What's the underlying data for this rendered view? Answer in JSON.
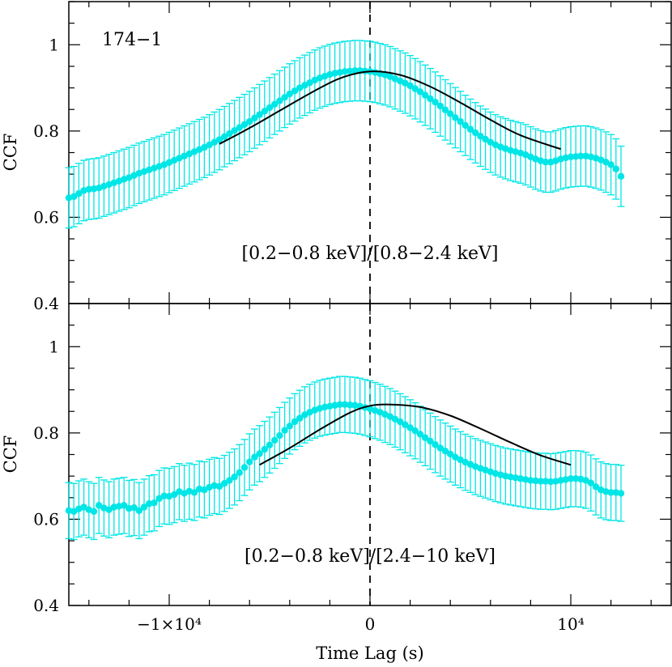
{
  "chart_data": [
    {
      "type": "scatter",
      "panel": "top",
      "label": "174−1",
      "band_ratio_label": "[0.2−0.8 keV]/[0.8−2.4 keV]",
      "ylabel": "CCF",
      "xlim": [
        -15000,
        15000
      ],
      "ylim": [
        0.4,
        1.1
      ],
      "y_tick_labels": [
        "0.4",
        "0.6",
        "0.8",
        "1"
      ],
      "y_ticks": [
        0.4,
        0.6,
        0.8,
        1.0
      ],
      "zero_line": true,
      "point_color": "#00e6e6",
      "error_bar_half_width": 0.07,
      "points": {
        "x_start": -15000,
        "x_step": 250,
        "y": [
          0.645,
          0.648,
          0.655,
          0.662,
          0.665,
          0.666,
          0.668,
          0.672,
          0.676,
          0.68,
          0.684,
          0.688,
          0.692,
          0.697,
          0.702,
          0.706,
          0.71,
          0.714,
          0.718,
          0.722,
          0.727,
          0.732,
          0.737,
          0.742,
          0.747,
          0.752,
          0.757,
          0.762,
          0.768,
          0.774,
          0.78,
          0.787,
          0.794,
          0.801,
          0.808,
          0.815,
          0.822,
          0.83,
          0.838,
          0.846,
          0.854,
          0.862,
          0.87,
          0.878,
          0.886,
          0.893,
          0.9,
          0.906,
          0.912,
          0.918,
          0.923,
          0.927,
          0.931,
          0.934,
          0.936,
          0.938,
          0.939,
          0.94,
          0.94,
          0.939,
          0.938,
          0.936,
          0.933,
          0.93,
          0.926,
          0.921,
          0.916,
          0.911,
          0.905,
          0.898,
          0.891,
          0.883,
          0.875,
          0.867,
          0.858,
          0.849,
          0.84,
          0.831,
          0.822,
          0.813,
          0.804,
          0.796,
          0.788,
          0.781,
          0.774,
          0.768,
          0.763,
          0.759,
          0.755,
          0.752,
          0.749,
          0.745,
          0.74,
          0.735,
          0.731,
          0.728,
          0.728,
          0.731,
          0.735,
          0.738,
          0.74,
          0.741,
          0.742,
          0.742,
          0.74,
          0.737,
          0.733,
          0.728,
          0.722,
          0.712,
          0.695
        ]
      },
      "fit_curve": {
        "x": [
          -7500,
          -6000,
          -4500,
          -3000,
          -1500,
          0,
          1500,
          3000,
          4500,
          6000,
          7500,
          9500
        ],
        "y": [
          0.77,
          0.807,
          0.847,
          0.887,
          0.922,
          0.938,
          0.93,
          0.903,
          0.866,
          0.826,
          0.79,
          0.758
        ]
      }
    },
    {
      "type": "scatter",
      "panel": "bottom",
      "band_ratio_label": "[0.2−0.8 keV]/[2.4−10 keV]",
      "xlabel": "Time Lag (s)",
      "ylabel": "CCF",
      "xlim": [
        -15000,
        15000
      ],
      "ylim": [
        0.4,
        1.1
      ],
      "x_ticks": [
        -10000,
        0,
        10000
      ],
      "x_tick_labels": [
        "−1×10⁴",
        "0",
        "10⁴"
      ],
      "y_tick_labels": [
        "0.4",
        "0.6",
        "0.8",
        "1"
      ],
      "y_ticks": [
        0.4,
        0.6,
        0.8,
        1.0
      ],
      "zero_line": true,
      "point_color": "#00e6e6",
      "error_bar_half_width": 0.065,
      "points": {
        "x_start": -15000,
        "x_step": 250,
        "y": [
          0.62,
          0.618,
          0.624,
          0.628,
          0.622,
          0.618,
          0.632,
          0.626,
          0.622,
          0.628,
          0.63,
          0.632,
          0.625,
          0.627,
          0.62,
          0.628,
          0.636,
          0.638,
          0.648,
          0.654,
          0.653,
          0.657,
          0.664,
          0.66,
          0.665,
          0.662,
          0.67,
          0.668,
          0.674,
          0.678,
          0.676,
          0.683,
          0.69,
          0.698,
          0.708,
          0.72,
          0.733,
          0.744,
          0.752,
          0.762,
          0.772,
          0.783,
          0.794,
          0.806,
          0.816,
          0.826,
          0.834,
          0.842,
          0.848,
          0.853,
          0.857,
          0.86,
          0.862,
          0.864,
          0.866,
          0.866,
          0.865,
          0.864,
          0.862,
          0.859,
          0.856,
          0.852,
          0.848,
          0.843,
          0.838,
          0.832,
          0.826,
          0.819,
          0.812,
          0.805,
          0.797,
          0.789,
          0.781,
          0.773,
          0.765,
          0.758,
          0.751,
          0.744,
          0.738,
          0.732,
          0.727,
          0.722,
          0.718,
          0.714,
          0.71,
          0.706,
          0.703,
          0.7,
          0.698,
          0.696,
          0.694,
          0.692,
          0.69,
          0.689,
          0.688,
          0.688,
          0.687,
          0.688,
          0.69,
          0.692,
          0.694,
          0.694,
          0.693,
          0.69,
          0.684,
          0.675,
          0.668,
          0.664,
          0.662,
          0.662,
          0.66
        ]
      },
      "fit_curve": {
        "x": [
          -5500,
          -4000,
          -2500,
          -1000,
          0,
          1000,
          2500,
          4000,
          5500,
          7000,
          8500,
          10000
        ],
        "y": [
          0.726,
          0.765,
          0.808,
          0.847,
          0.863,
          0.866,
          0.86,
          0.84,
          0.81,
          0.778,
          0.748,
          0.726
        ]
      }
    }
  ]
}
